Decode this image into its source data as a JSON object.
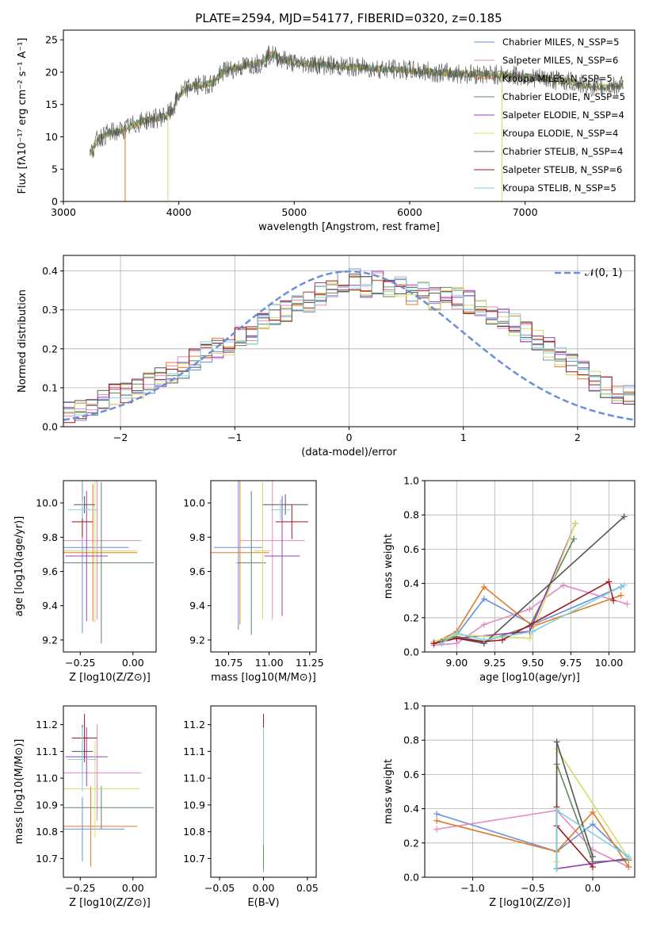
{
  "title": "PLATE=2594, MJD=54177, FIBERID=0320, z=0.185",
  "colors": [
    "#6a8fd8",
    "#e58ac2",
    "#e07b2a",
    "#5e8a5e",
    "#9b3db8",
    "#d8dc6a",
    "#555555",
    "#a01820",
    "#7fd3dc"
  ],
  "legend": [
    "Chabrier MILES, N_SSP=5",
    "Salpeter MILES, N_SSP=6",
    "Kroupa MILES, N_SSP=5",
    "Chabrier ELODIE, N_SSP=5",
    "Salpeter ELODIE, N_SSP=4",
    "Kroupa ELODIE, N_SSP=4",
    "Chabrier STELIB, N_SSP=4",
    "Salpeter STELIB, N_SSP=6",
    "Kroupa STELIB, N_SSP=5"
  ],
  "chart_data": [
    {
      "id": "spectrum",
      "type": "line",
      "xlabel": "wavelength [Angstrom, rest frame]",
      "ylabel": "Flux [fλ10⁻¹⁷ erg cm⁻² s⁻¹ A⁻¹]",
      "xlim": [
        3000,
        7950
      ],
      "ylim": [
        0,
        26.5
      ],
      "xticks": [
        3000,
        4000,
        5000,
        6000,
        7000
      ],
      "yticks": [
        0,
        5,
        10,
        15,
        20,
        25
      ],
      "legend_position": "top-right",
      "x": [
        3230,
        3300,
        3400,
        3500,
        3600,
        3700,
        3800,
        3900,
        3950,
        4000,
        4100,
        4200,
        4300,
        4400,
        4500,
        4600,
        4700,
        4800,
        4900,
        5000,
        5200,
        5400,
        5600,
        5800,
        6000,
        6200,
        6400,
        6600,
        6800,
        7000,
        7200,
        7400,
        7600,
        7800
      ],
      "y": [
        7.2,
        9.8,
        10.6,
        10.9,
        11.8,
        12.5,
        12.8,
        13.4,
        14.2,
        16.5,
        17.8,
        18.0,
        18.4,
        20.3,
        20.6,
        21.1,
        21.4,
        22.8,
        22.0,
        21.4,
        21.2,
        20.9,
        20.7,
        20.5,
        20.3,
        20.0,
        19.8,
        19.7,
        19.6,
        19.3,
        18.9,
        18.5,
        17.6,
        17.9
      ]
    },
    {
      "id": "residuals",
      "type": "histogram",
      "xlabel": "(data-model)/error",
      "ylabel": "Normed distribution",
      "xlim": [
        -2.5,
        2.5
      ],
      "ylim": [
        0,
        0.44
      ],
      "xticks": [
        -2,
        -1,
        0,
        1,
        2
      ],
      "yticks": [
        0.0,
        0.1,
        0.2,
        0.3,
        0.4
      ],
      "grid": true,
      "legend_position": "top-right",
      "curve_label": "𝒩(0, 1)",
      "bin_edges_range": [
        -2.5,
        2.5
      ],
      "bins": 50,
      "values": [
        0.04,
        0.045,
        0.05,
        0.07,
        0.08,
        0.09,
        0.1,
        0.11,
        0.13,
        0.14,
        0.15,
        0.17,
        0.19,
        0.2,
        0.21,
        0.23,
        0.24,
        0.27,
        0.29,
        0.3,
        0.31,
        0.32,
        0.34,
        0.35,
        0.37,
        0.38,
        0.36,
        0.37,
        0.35,
        0.36,
        0.34,
        0.35,
        0.33,
        0.34,
        0.33,
        0.32,
        0.31,
        0.29,
        0.28,
        0.26,
        0.24,
        0.22,
        0.2,
        0.18,
        0.16,
        0.14,
        0.12,
        0.1,
        0.09,
        0.08
      ]
    },
    {
      "id": "age-z",
      "type": "errorbar",
      "xlabel": "Z [log10(Z/Z⊙)]",
      "ylabel": "age  [log10(age/yr)]",
      "xlim": [
        -0.33,
        0.11
      ],
      "ylim": [
        9.13,
        10.13
      ],
      "xticks": [
        -0.25,
        0.0
      ],
      "yticks": [
        9.2,
        9.4,
        9.6,
        9.8,
        10.0
      ],
      "points": [
        {
          "x": -0.24,
          "y": 9.74,
          "xerr": 0.22,
          "yerr": 0.5
        },
        {
          "x": -0.17,
          "y": 9.78,
          "xerr": 0.21,
          "yerr": 0.46
        },
        {
          "x": -0.19,
          "y": 9.71,
          "xerr": 0.21,
          "yerr": 0.4
        },
        {
          "x": -0.15,
          "y": 9.65,
          "xerr": 0.25,
          "yerr": 0.47
        },
        {
          "x": -0.22,
          "y": 9.69,
          "xerr": 0.1,
          "yerr": 0.38
        },
        {
          "x": -0.18,
          "y": 9.72,
          "xerr": 0.2,
          "yerr": 0.42
        },
        {
          "x": -0.23,
          "y": 9.99,
          "xerr": 0.05,
          "yerr": 0.05
        },
        {
          "x": -0.24,
          "y": 9.89,
          "xerr": 0.05,
          "yerr": 0.09
        },
        {
          "x": -0.24,
          "y": 9.96,
          "xerr": 0.07,
          "yerr": 0.05
        }
      ]
    },
    {
      "id": "age-mass",
      "type": "errorbar",
      "xlabel": "mass [log10(M/M⊙)]",
      "ylabel": "",
      "xlim": [
        10.64,
        11.29
      ],
      "ylim": [
        9.13,
        10.13
      ],
      "xticks": [
        10.75,
        11.0,
        11.25
      ],
      "yticks": [
        9.2,
        9.4,
        9.6,
        9.8,
        10.0
      ],
      "points": [
        {
          "x": 10.81,
          "y": 9.74,
          "xerr": 0.15,
          "yerr": 0.48
        },
        {
          "x": 11.02,
          "y": 9.78,
          "xerr": 0.2,
          "yerr": 0.46
        },
        {
          "x": 10.82,
          "y": 9.71,
          "xerr": 0.18,
          "yerr": 0.42
        },
        {
          "x": 10.89,
          "y": 9.65,
          "xerr": 0.09,
          "yerr": 0.42
        },
        {
          "x": 11.08,
          "y": 9.69,
          "xerr": 0.11,
          "yerr": 0.35
        },
        {
          "x": 10.96,
          "y": 9.72,
          "xerr": 0.05,
          "yerr": 0.4
        },
        {
          "x": 11.1,
          "y": 9.99,
          "xerr": 0.14,
          "yerr": 0.06
        },
        {
          "x": 11.14,
          "y": 9.89,
          "xerr": 0.1,
          "yerr": 0.1
        },
        {
          "x": 11.07,
          "y": 9.96,
          "xerr": 0.06,
          "yerr": 0.06
        }
      ]
    },
    {
      "id": "weight-age",
      "type": "line",
      "xlabel": "age  [log10(age/yr)]",
      "ylabel": "mass weight",
      "xlim": [
        8.79,
        10.17
      ],
      "ylim": [
        0,
        1.0
      ],
      "xticks": [
        9.0,
        9.25,
        9.5,
        9.75,
        10.0
      ],
      "yticks": [
        0.0,
        0.2,
        0.4,
        0.6,
        0.8,
        1.0
      ],
      "grid": true,
      "series": [
        {
          "x": [
            8.85,
            9.0,
            9.18,
            9.5,
            10.08
          ],
          "y": [
            0.06,
            0.1,
            0.31,
            0.16,
            0.38
          ]
        },
        {
          "x": [
            8.85,
            9.0,
            9.18,
            9.48,
            9.7,
            10.12
          ],
          "y": [
            0.04,
            0.05,
            0.16,
            0.25,
            0.39,
            0.28
          ]
        },
        {
          "x": [
            8.85,
            9.0,
            9.18,
            9.5,
            10.08
          ],
          "y": [
            0.05,
            0.12,
            0.38,
            0.15,
            0.33
          ]
        },
        {
          "x": [
            8.85,
            9.0,
            9.18,
            9.48,
            9.77
          ],
          "y": [
            0.06,
            0.09,
            0.06,
            0.15,
            0.66
          ]
        },
        {
          "x": [
            8.85,
            9.0,
            9.48,
            9.78
          ],
          "y": [
            0.05,
            0.08,
            0.12,
            0.75
          ]
        },
        {
          "x": [
            8.85,
            9.0,
            9.48,
            9.78
          ],
          "y": [
            0.06,
            0.1,
            0.08,
            0.75
          ]
        },
        {
          "x": [
            8.9,
            9.0,
            9.18,
            10.1
          ],
          "y": [
            0.06,
            0.08,
            0.05,
            0.79
          ]
        },
        {
          "x": [
            8.85,
            9.0,
            9.18,
            9.3,
            10.0,
            10.03
          ],
          "y": [
            0.05,
            0.08,
            0.06,
            0.07,
            0.41,
            0.3
          ]
        },
        {
          "x": [
            8.9,
            9.0,
            9.18,
            9.5,
            10.1
          ],
          "y": [
            0.05,
            0.11,
            0.07,
            0.12,
            0.39
          ]
        }
      ]
    },
    {
      "id": "mass-z",
      "type": "errorbar",
      "xlabel": "Z [log10(Z/Z⊙)]",
      "ylabel": "mass [log10(M/M⊙)]",
      "xlim": [
        -0.33,
        0.11
      ],
      "ylim": [
        10.63,
        11.27
      ],
      "xticks": [
        -0.25,
        0.0
      ],
      "yticks": [
        10.7,
        10.8,
        10.9,
        11.0,
        11.1,
        11.2
      ],
      "points": [
        {
          "x": -0.24,
          "y": 10.81,
          "xerr": 0.2,
          "yerr": 0.12
        },
        {
          "x": -0.17,
          "y": 11.02,
          "xerr": 0.21,
          "yerr": 0.18
        },
        {
          "x": -0.2,
          "y": 10.82,
          "xerr": 0.22,
          "yerr": 0.15
        },
        {
          "x": -0.15,
          "y": 10.89,
          "xerr": 0.25,
          "yerr": 0.08
        },
        {
          "x": -0.22,
          "y": 11.08,
          "xerr": 0.1,
          "yerr": 0.11
        },
        {
          "x": -0.18,
          "y": 10.96,
          "xerr": 0.21,
          "yerr": 0.18
        },
        {
          "x": -0.24,
          "y": 11.1,
          "xerr": 0.05,
          "yerr": 0.1
        },
        {
          "x": -0.23,
          "y": 11.15,
          "xerr": 0.06,
          "yerr": 0.09
        },
        {
          "x": -0.24,
          "y": 11.07,
          "xerr": 0.07,
          "yerr": 0.12
        }
      ]
    },
    {
      "id": "mass-ebv",
      "type": "errorbar",
      "xlabel": "E(B-V)",
      "ylabel": "",
      "xlim": [
        -0.06,
        0.06
      ],
      "ylim": [
        10.63,
        11.27
      ],
      "xticks": [
        -0.05,
        0.0,
        0.05
      ],
      "yticks": [
        10.7,
        10.8,
        10.9,
        11.0,
        11.1,
        11.2
      ],
      "points": [
        {
          "x": 0.0,
          "y": 10.9,
          "xerr": 0.0,
          "yerr": 0.25
        },
        {
          "x": 0.0,
          "y": 10.96,
          "xerr": 0.0,
          "yerr": 0.22
        },
        {
          "x": 0.0,
          "y": 10.93,
          "xerr": 0.0,
          "yerr": 0.24
        },
        {
          "x": 0.0,
          "y": 10.9,
          "xerr": 0.0,
          "yerr": 0.23
        },
        {
          "x": 0.0,
          "y": 10.98,
          "xerr": 0.0,
          "yerr": 0.22
        },
        {
          "x": 0.0,
          "y": 10.95,
          "xerr": 0.0,
          "yerr": 0.2
        },
        {
          "x": 0.0,
          "y": 11.0,
          "xerr": 0.0,
          "yerr": 0.2
        },
        {
          "x": 0.0,
          "y": 11.02,
          "xerr": 0.0,
          "yerr": 0.22
        },
        {
          "x": 0.0,
          "y": 10.97,
          "xerr": 0.0,
          "yerr": 0.22
        }
      ]
    },
    {
      "id": "weight-z",
      "type": "line",
      "xlabel": "Z [log10(Z/Z⊙)]",
      "ylabel": "mass weight",
      "xlim": [
        -1.4,
        0.35
      ],
      "ylim": [
        0,
        1.0
      ],
      "xticks": [
        -1.0,
        -0.5,
        0.0
      ],
      "yticks": [
        0.0,
        0.2,
        0.4,
        0.6,
        0.8,
        1.0
      ],
      "grid": true,
      "series": [
        {
          "x": [
            -1.3,
            -0.3,
            0.0,
            0.3
          ],
          "y": [
            0.37,
            0.15,
            0.31,
            0.11
          ]
        },
        {
          "x": [
            -1.3,
            -0.3,
            0.0,
            0.3
          ],
          "y": [
            0.28,
            0.39,
            0.16,
            0.06
          ]
        },
        {
          "x": [
            -1.3,
            -0.3,
            0.0,
            0.3
          ],
          "y": [
            0.33,
            0.15,
            0.38,
            0.06
          ]
        },
        {
          "x": [
            -0.3,
            -0.3,
            0.0,
            0.3
          ],
          "y": [
            0.05,
            0.66,
            0.09,
            0.1
          ]
        },
        {
          "x": [
            -0.3,
            0.0,
            0.3
          ],
          "y": [
            0.05,
            0.08,
            0.11
          ]
        },
        {
          "x": [
            -0.3,
            -0.3,
            0.3
          ],
          "y": [
            0.09,
            0.75,
            0.11
          ]
        },
        {
          "x": [
            -0.3,
            -0.3,
            0.0
          ],
          "y": [
            0.05,
            0.79,
            0.12
          ]
        },
        {
          "x": [
            -0.3,
            -0.3,
            0.0
          ],
          "y": [
            0.41,
            0.3,
            0.06
          ]
        },
        {
          "x": [
            -0.3,
            -0.3,
            0.3
          ],
          "y": [
            0.05,
            0.39,
            0.12
          ]
        }
      ]
    }
  ]
}
